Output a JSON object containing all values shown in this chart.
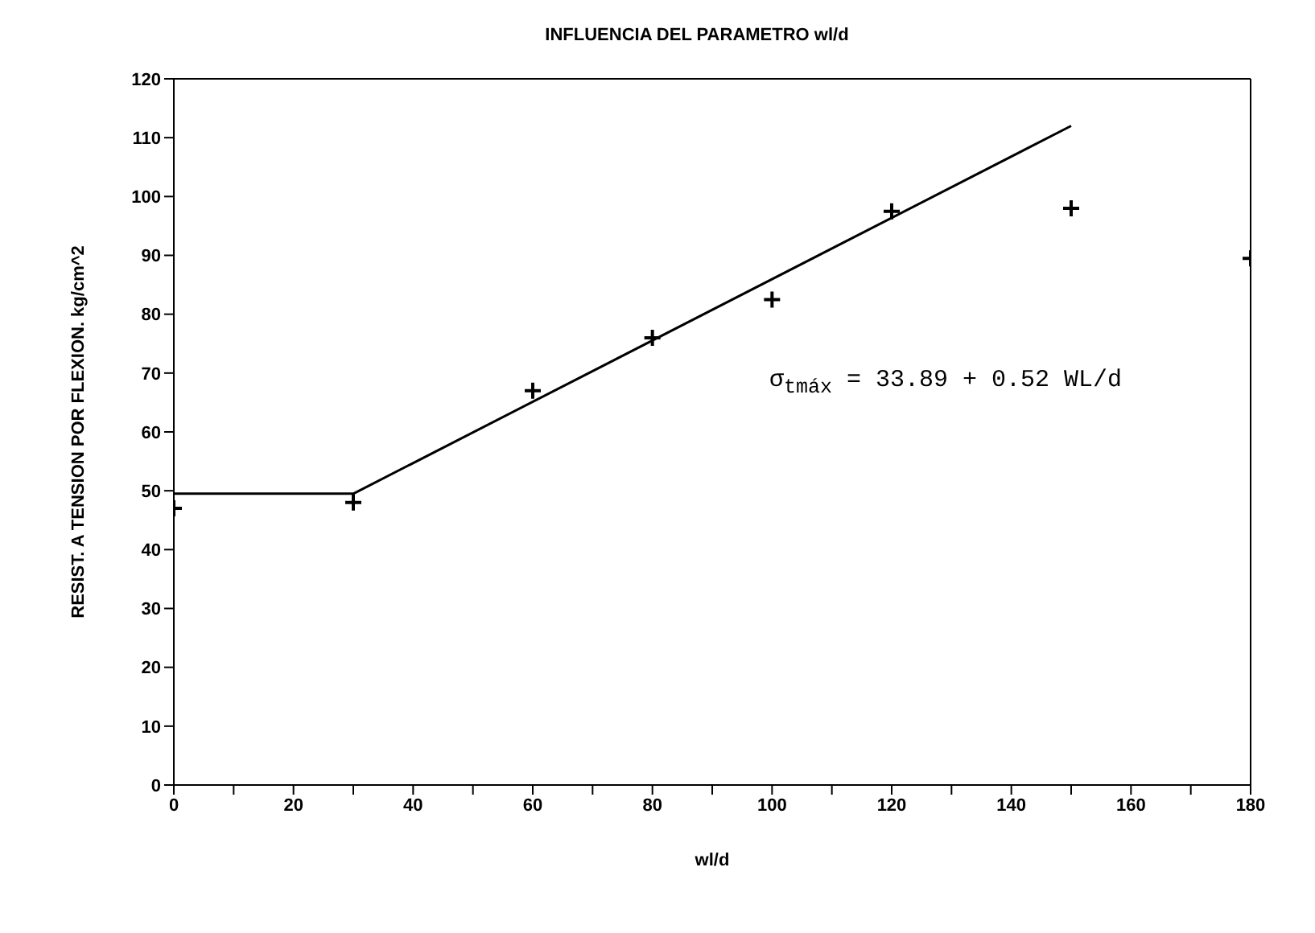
{
  "chart_data": {
    "type": "scatter",
    "title": "INFLUENCIA DEL PARAMETRO wl/d",
    "xlabel": "wl/d",
    "ylabel": "RESIST. A TENSION POR FLEXION. kg/cm^2",
    "annotations": [
      "σ$_{tmáx}$ = 33.89 + 0.52 WL/d"
    ],
    "marker": "cross",
    "series": [
      {
        "color": "#000000",
        "x": [
          0,
          30,
          60,
          80,
          100,
          120,
          150,
          180
        ],
        "values": [
          47,
          48,
          67,
          76,
          82.5,
          97.5,
          98,
          89.5
        ]
      },
      {
        "type": "line",
        "color": "#000000",
        "marker": "none",
        "line_style": "solid",
        "x": [
          0,
          30,
          150
        ],
        "values": [
          49.5,
          49.5,
          112
        ]
      }
    ],
    "xlim": [
      0,
      180
    ],
    "xticks": [
      0,
      {
        "value": 10,
        "label": null
      },
      20,
      {
        "value": 30,
        "label": null
      },
      40,
      {
        "value": 50,
        "label": null
      },
      60,
      {
        "value": 70,
        "label": null
      },
      80,
      {
        "value": 90,
        "label": null
      },
      100,
      {
        "value": 110,
        "label": null
      },
      120,
      {
        "value": 130,
        "label": null
      },
      140,
      {
        "value": 150,
        "label": null
      },
      160,
      {
        "value": 170,
        "label": null
      },
      180
    ],
    "ylim": [
      0,
      120
    ],
    "yticks": [
      0,
      10,
      20,
      30,
      40,
      50,
      60,
      70,
      80,
      90,
      100,
      110,
      120
    ]
  }
}
